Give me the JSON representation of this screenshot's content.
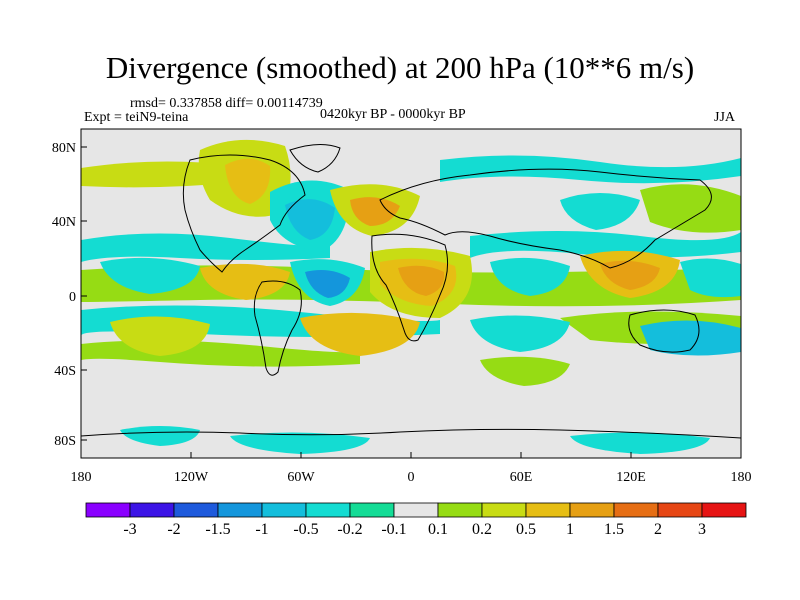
{
  "title": "Divergence (smoothed) at 200 hPa (10**6 m/s)",
  "stats": "rmsd= 0.337858  diff= 0.00114739",
  "experiment": "Expt = teiN9-teina",
  "period": "0420kyr BP - 0000kyr BP",
  "season": "JJA",
  "y_ticks": [
    "80N",
    "40N",
    "0",
    "40S",
    "80S"
  ],
  "x_ticks": [
    "180",
    "120W",
    "60W",
    "0",
    "60E",
    "120E",
    "180"
  ],
  "colorbar": {
    "colors": [
      "#8a00ff",
      "#3c14e6",
      "#1e5adc",
      "#1496dc",
      "#14bedc",
      "#14dcd2",
      "#14dc96",
      "#e6e6e6",
      "#96dc14",
      "#c8dc14",
      "#e6be14",
      "#e6a014",
      "#e66e14",
      "#e64614",
      "#e61414"
    ],
    "labels": [
      "-3",
      "-2",
      "-1.5",
      "-1",
      "-0.5",
      "-0.2",
      "-0.1",
      "0.1",
      "0.2",
      "0.5",
      "1",
      "1.5",
      "2",
      "3"
    ]
  },
  "palette": {
    "neutral": "#e6e6e6",
    "pos_light": "#96dc14",
    "pos_mid": "#c8dc14",
    "pos_strong": "#e6be14",
    "pos_peak": "#e6a014",
    "neg_light": "#14dc96",
    "neg_mid": "#14dcd2",
    "neg_strong": "#14bedc",
    "neg_peak": "#1496dc"
  }
}
